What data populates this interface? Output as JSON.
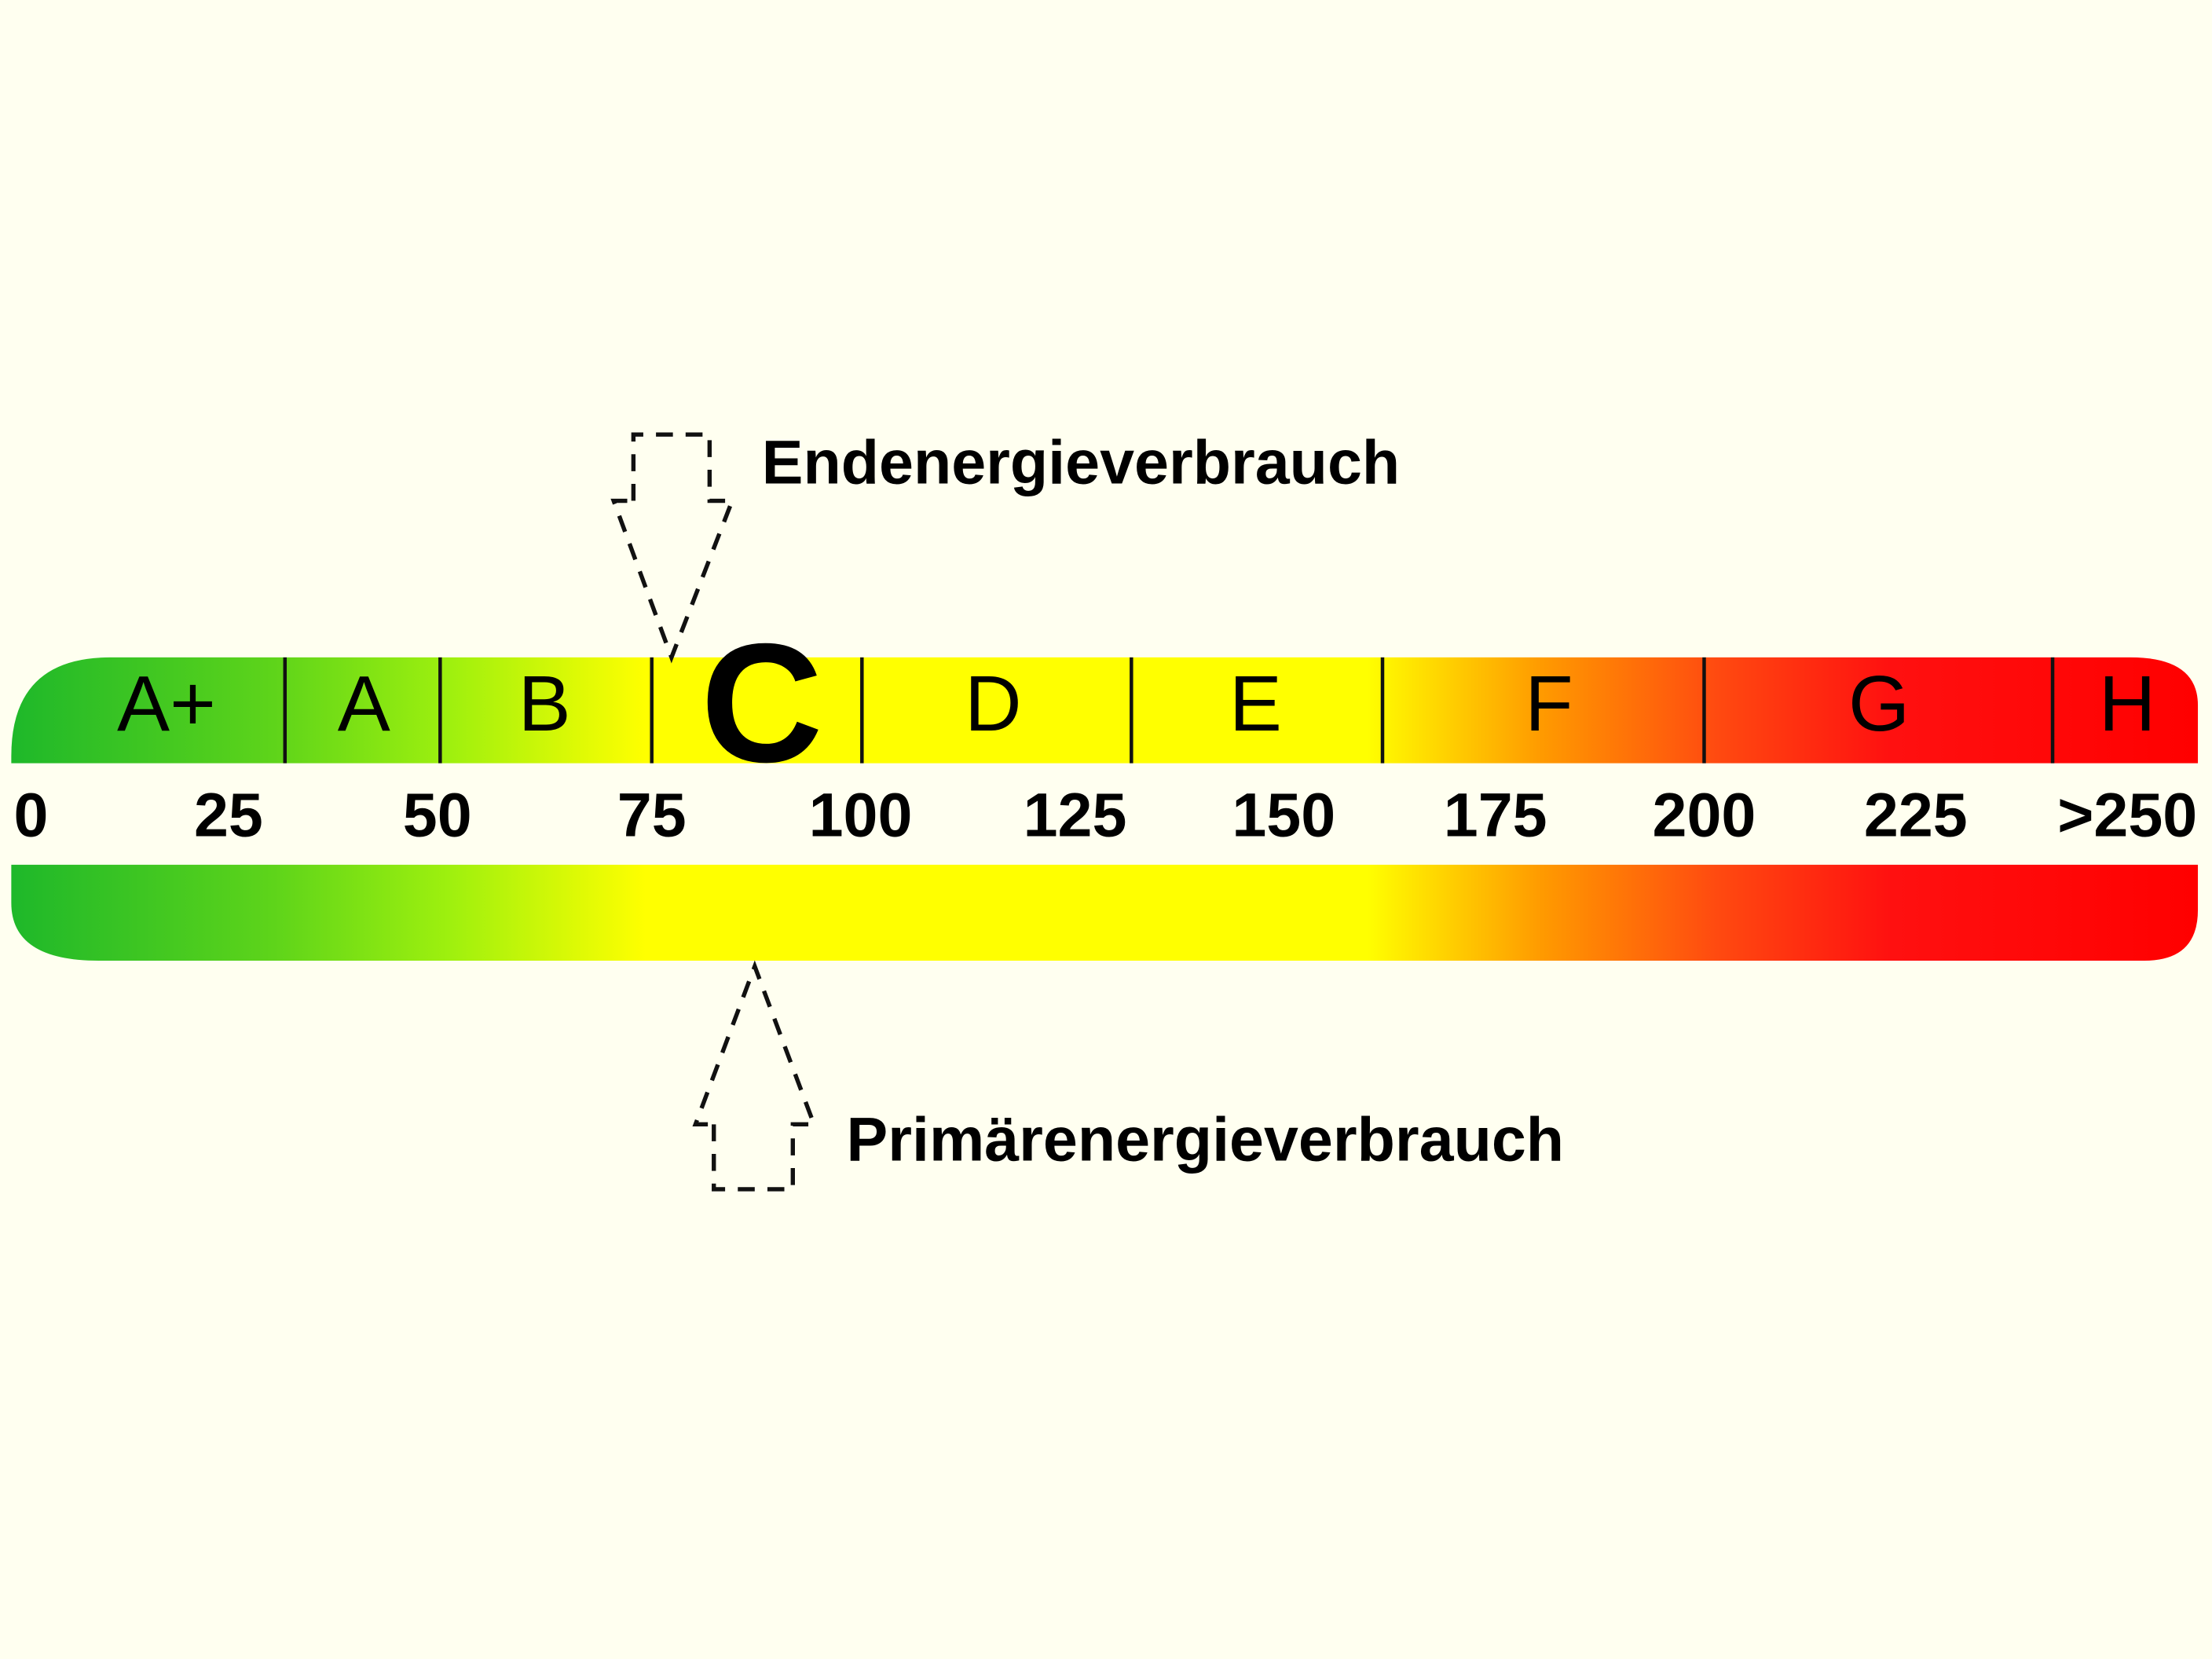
{
  "scale": {
    "classes": [
      "A+",
      "A",
      "B",
      "C",
      "D",
      "E",
      "F",
      "G",
      "H"
    ],
    "ticks": [
      "0",
      "25",
      "50",
      "75",
      "100",
      "125",
      "150",
      "175",
      "200",
      "225",
      ">250"
    ]
  },
  "markers": {
    "top_label": "Endenergieverbrauch",
    "bottom_label": "Primärenergieverbrauch"
  }
}
